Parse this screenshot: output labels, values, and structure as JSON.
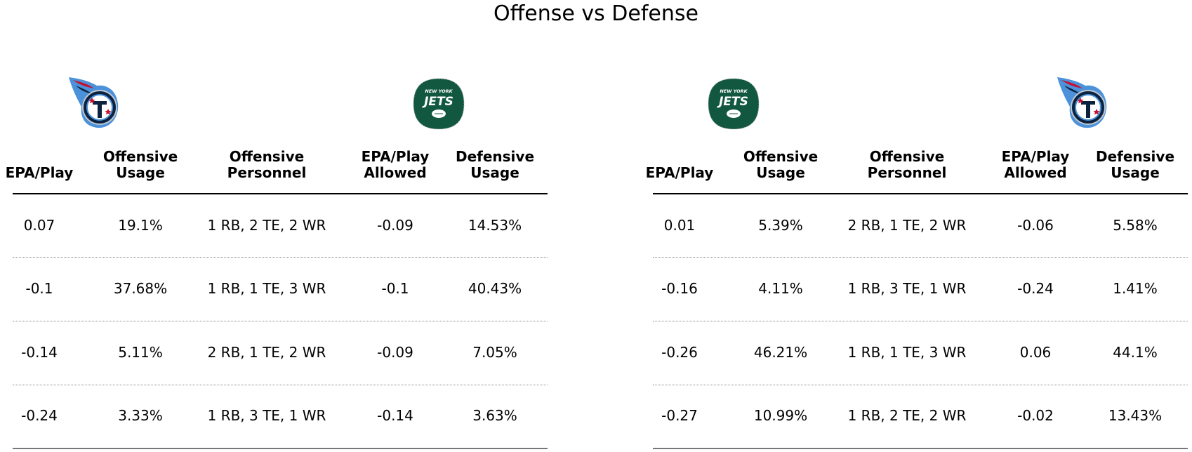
{
  "title": "Offense vs Defense",
  "colors": {
    "titans_navy": "#0C2340",
    "titans_blue": "#4B92DB",
    "titans_red": "#C8102E",
    "jets_green": "#125740"
  },
  "chart_data": [
    {
      "type": "table",
      "logos": {
        "offense_team": "titans-logo",
        "defense_team": "jets-logo"
      },
      "columns": [
        "EPA/Play",
        "Offensive Usage",
        "Offensive Personnel",
        "EPA/Play Allowed",
        "Defensive Usage"
      ],
      "column_lines": [
        [
          "EPA/Play"
        ],
        [
          "Offensive",
          "Usage"
        ],
        [
          "Offensive",
          "Personnel"
        ],
        [
          "EPA/Play",
          "Allowed"
        ],
        [
          "Defensive",
          "Usage"
        ]
      ],
      "rows": [
        [
          "0.07",
          "19.1%",
          "1 RB, 2 TE, 2 WR",
          "-0.09",
          "14.53%"
        ],
        [
          "-0.1",
          "37.68%",
          "1 RB, 1 TE, 3 WR",
          "-0.1",
          "40.43%"
        ],
        [
          "-0.14",
          "5.11%",
          "2 RB, 1 TE, 2 WR",
          "-0.09",
          "7.05%"
        ],
        [
          "-0.24",
          "3.33%",
          "1 RB, 3 TE, 1 WR",
          "-0.14",
          "3.63%"
        ]
      ]
    },
    {
      "type": "table",
      "logos": {
        "offense_team": "jets-logo",
        "defense_team": "titans-logo"
      },
      "columns": [
        "EPA/Play",
        "Offensive Usage",
        "Offensive Personnel",
        "EPA/Play Allowed",
        "Defensive Usage"
      ],
      "column_lines": [
        [
          "EPA/Play"
        ],
        [
          "Offensive",
          "Usage"
        ],
        [
          "Offensive",
          "Personnel"
        ],
        [
          "EPA/Play",
          "Allowed"
        ],
        [
          "Defensive",
          "Usage"
        ]
      ],
      "rows": [
        [
          "0.01",
          "5.39%",
          "2 RB, 1 TE, 2 WR",
          "-0.06",
          "5.58%"
        ],
        [
          "-0.16",
          "4.11%",
          "1 RB, 3 TE, 1 WR",
          "-0.24",
          "1.41%"
        ],
        [
          "-0.26",
          "46.21%",
          "1 RB, 1 TE, 3 WR",
          "0.06",
          "44.1%"
        ],
        [
          "-0.27",
          "10.99%",
          "1 RB, 2 TE, 2 WR",
          "-0.02",
          "13.43%"
        ]
      ]
    }
  ]
}
